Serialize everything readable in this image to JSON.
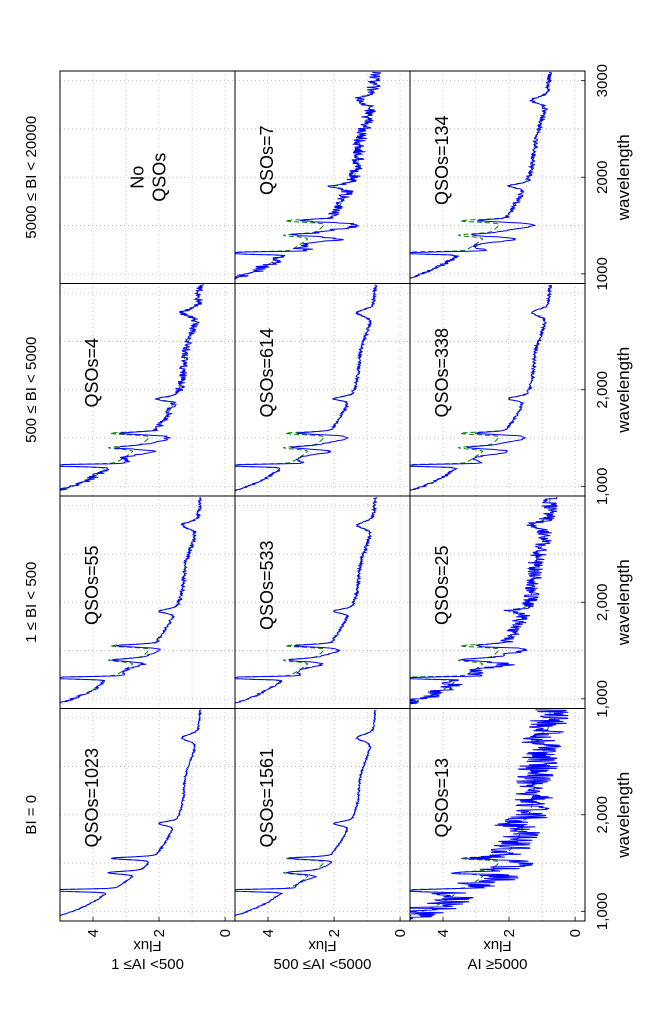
{
  "chart_data": {
    "type": "line",
    "layout": "grid of 3 rows (AI classes) x 4 columns (BI classes), page rotated 90 degrees",
    "column_titles": [
      "BI = 0",
      "1 ≤ BI < 500",
      "500 ≤ BI < 5000",
      "5000 ≤ BI < 20000"
    ],
    "row_titles": [
      "1 ≤AI <500",
      "500 ≤AI <5000",
      "AI ≥5000"
    ],
    "xlabel": "wavelength",
    "ylabel": "Flux",
    "xlim": [
      900,
      3100
    ],
    "ylim": [
      -0.3,
      5
    ],
    "grid": true,
    "x_tick_labels": {
      "col0": [
        "1,000",
        "2,000"
      ],
      "col1": [
        "1,000",
        "2,000"
      ],
      "col2": [
        "1,000",
        "2,000"
      ],
      "col3": [
        "1000",
        "2000",
        "3000"
      ]
    },
    "x_tick_values": {
      "col0": [
        1000,
        2000
      ],
      "col1": [
        1000,
        2000
      ],
      "col2": [
        1000,
        2000
      ],
      "col3": [
        1000,
        2000,
        3000
      ]
    },
    "y_tick_labels": [
      "0",
      "2",
      "4"
    ],
    "y_tick_values": [
      0,
      2,
      4
    ],
    "series_colors": {
      "composite": "#0000ff",
      "reference": "#008000"
    },
    "panels": [
      {
        "row": 0,
        "col": 0,
        "label": "QSOs=1023",
        "noise": 0.03,
        "dip": 0
      },
      {
        "row": 0,
        "col": 1,
        "label": "QSOs=55",
        "noise": 0.06,
        "dip": 0.3
      },
      {
        "row": 0,
        "col": 2,
        "label": "QSOs=4",
        "noise": 0.12,
        "dip": 0.5
      },
      {
        "row": 0,
        "col": 3,
        "label": "No\nQSOs",
        "empty": true
      },
      {
        "row": 1,
        "col": 0,
        "label": "QSOs=1561",
        "noise": 0.03,
        "dip": 0.2
      },
      {
        "row": 1,
        "col": 1,
        "label": "QSOs=533",
        "noise": 0.05,
        "dip": 0.4
      },
      {
        "row": 1,
        "col": 2,
        "label": "QSOs=614",
        "noise": 0.05,
        "dip": 0.6
      },
      {
        "row": 1,
        "col": 3,
        "label": "QSOs=7",
        "noise": 0.2,
        "dip": 0.8
      },
      {
        "row": 2,
        "col": 0,
        "label": "QSOs=13",
        "noise": 0.6,
        "dip": 0.7
      },
      {
        "row": 2,
        "col": 1,
        "label": "QSOs=25",
        "noise": 0.25,
        "dip": 0.6
      },
      {
        "row": 2,
        "col": 2,
        "label": "QSOs=338",
        "noise": 0.05,
        "dip": 0.7
      },
      {
        "row": 2,
        "col": 3,
        "label": "QSOs=134",
        "noise": 0.08,
        "dip": 0.9
      }
    ]
  }
}
